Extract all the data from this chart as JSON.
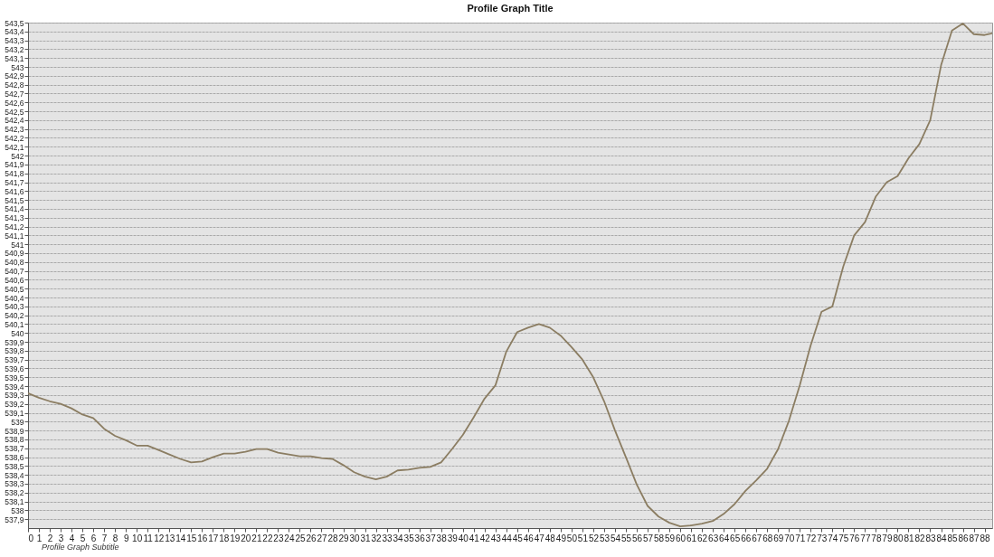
{
  "chart_data": {
    "type": "line",
    "title": "Profile Graph Title",
    "subtitle": "Profile Graph Subtitle",
    "x": [
      0,
      1,
      2,
      3,
      4,
      5,
      6,
      7,
      8,
      9,
      10,
      11,
      12,
      13,
      14,
      15,
      16,
      17,
      18,
      19,
      20,
      21,
      22,
      23,
      24,
      25,
      26,
      27,
      28,
      29,
      30,
      31,
      32,
      33,
      34,
      35,
      36,
      37,
      38,
      39,
      40,
      41,
      42,
      43,
      44,
      45,
      46,
      47,
      48,
      49,
      50,
      51,
      52,
      53,
      54,
      55,
      56,
      57,
      58,
      59,
      60,
      61,
      62,
      63,
      64,
      65,
      66,
      67,
      68,
      69,
      70,
      71,
      72,
      73,
      74,
      75,
      76,
      77,
      78,
      79,
      80,
      81,
      82,
      83,
      84,
      85,
      86,
      87,
      88,
      88.7
    ],
    "series": [
      {
        "color": "#8b7d62",
        "values": [
          539.32,
          539.27,
          539.23,
          539.2,
          539.15,
          539.08,
          539.04,
          538.92,
          538.84,
          538.79,
          538.73,
          538.73,
          538.68,
          538.63,
          538.58,
          538.54,
          538.55,
          538.6,
          538.64,
          538.64,
          538.66,
          538.69,
          538.69,
          538.65,
          538.63,
          538.61,
          538.61,
          538.59,
          538.58,
          538.51,
          538.43,
          538.38,
          538.35,
          538.38,
          538.45,
          538.46,
          538.48,
          538.49,
          538.54,
          538.69,
          538.85,
          539.05,
          539.26,
          539.41,
          539.79,
          540.01,
          540.06,
          540.1,
          540.06,
          539.97,
          539.84,
          539.7,
          539.5,
          539.23,
          538.9,
          538.6,
          538.29,
          538.05,
          537.93,
          537.86,
          537.82,
          537.83,
          537.85,
          537.88,
          537.96,
          538.07,
          538.22,
          538.34,
          538.47,
          538.69,
          539.01,
          539.41,
          539.86,
          540.24,
          540.3,
          540.75,
          541.1,
          541.25,
          541.54,
          541.7,
          541.77,
          541.97,
          542.13,
          542.4,
          543.02,
          543.41,
          543.49,
          543.37,
          543.36,
          543.38
        ]
      }
    ],
    "xlim": [
      0,
      88.7
    ],
    "ylim": [
      537.8,
      543.5
    ],
    "xticks": [
      0,
      1,
      2,
      3,
      4,
      5,
      6,
      7,
      8,
      9,
      10,
      11,
      12,
      13,
      14,
      15,
      16,
      17,
      18,
      19,
      20,
      21,
      22,
      23,
      24,
      25,
      26,
      27,
      28,
      29,
      30,
      31,
      32,
      33,
      34,
      35,
      36,
      37,
      38,
      39,
      40,
      41,
      42,
      43,
      44,
      45,
      46,
      47,
      48,
      49,
      50,
      51,
      52,
      53,
      54,
      55,
      56,
      57,
      58,
      59,
      60,
      61,
      62,
      63,
      64,
      65,
      66,
      67,
      68,
      69,
      70,
      71,
      72,
      73,
      74,
      75,
      76,
      77,
      78,
      79,
      80,
      81,
      82,
      83,
      84,
      85,
      86,
      87,
      88
    ],
    "yticks": [
      {
        "value": 537.9,
        "label": "537,9"
      },
      {
        "value": 538,
        "label": "538"
      },
      {
        "value": 538.1,
        "label": "538,1"
      },
      {
        "value": 538.2,
        "label": "538,2"
      },
      {
        "value": 538.3,
        "label": "538,3"
      },
      {
        "value": 538.4,
        "label": "538,4"
      },
      {
        "value": 538.5,
        "label": "538,5"
      },
      {
        "value": 538.6,
        "label": "538,6"
      },
      {
        "value": 538.7,
        "label": "538,7"
      },
      {
        "value": 538.8,
        "label": "538,8"
      },
      {
        "value": 538.9,
        "label": "538,9"
      },
      {
        "value": 539,
        "label": "539"
      },
      {
        "value": 539.1,
        "label": "539,1"
      },
      {
        "value": 539.2,
        "label": "539,2"
      },
      {
        "value": 539.3,
        "label": "539,3"
      },
      {
        "value": 539.4,
        "label": "539,4"
      },
      {
        "value": 539.5,
        "label": "539,5"
      },
      {
        "value": 539.6,
        "label": "539,6"
      },
      {
        "value": 539.7,
        "label": "539,7"
      },
      {
        "value": 539.8,
        "label": "539,8"
      },
      {
        "value": 539.9,
        "label": "539,9"
      },
      {
        "value": 540,
        "label": "540"
      },
      {
        "value": 540.1,
        "label": "540,1"
      },
      {
        "value": 540.2,
        "label": "540,2"
      },
      {
        "value": 540.3,
        "label": "540,3"
      },
      {
        "value": 540.4,
        "label": "540,4"
      },
      {
        "value": 540.5,
        "label": "540,5"
      },
      {
        "value": 540.6,
        "label": "540,6"
      },
      {
        "value": 540.7,
        "label": "540,7"
      },
      {
        "value": 540.8,
        "label": "540,8"
      },
      {
        "value": 540.9,
        "label": "540,9"
      },
      {
        "value": 541,
        "label": "541"
      },
      {
        "value": 541.1,
        "label": "541,1"
      },
      {
        "value": 541.2,
        "label": "541,2"
      },
      {
        "value": 541.3,
        "label": "541,3"
      },
      {
        "value": 541.4,
        "label": "541,4"
      },
      {
        "value": 541.5,
        "label": "541,5"
      },
      {
        "value": 541.6,
        "label": "541,6"
      },
      {
        "value": 541.7,
        "label": "541,7"
      },
      {
        "value": 541.8,
        "label": "541,8"
      },
      {
        "value": 541.9,
        "label": "541,9"
      },
      {
        "value": 542,
        "label": "542"
      },
      {
        "value": 542.1,
        "label": "542,1"
      },
      {
        "value": 542.2,
        "label": "542,2"
      },
      {
        "value": 542.3,
        "label": "542,3"
      },
      {
        "value": 542.4,
        "label": "542,4"
      },
      {
        "value": 542.5,
        "label": "542,5"
      },
      {
        "value": 542.6,
        "label": "542,6"
      },
      {
        "value": 542.7,
        "label": "542,7"
      },
      {
        "value": 542.8,
        "label": "542,8"
      },
      {
        "value": 542.9,
        "label": "542,9"
      },
      {
        "value": 543,
        "label": "543"
      },
      {
        "value": 543.1,
        "label": "543,1"
      },
      {
        "value": 543.2,
        "label": "543,2"
      },
      {
        "value": 543.3,
        "label": "543,3"
      },
      {
        "value": 543.4,
        "label": "543,4"
      },
      {
        "value": 543.5,
        "label": "543,5"
      }
    ],
    "grid": "y"
  }
}
